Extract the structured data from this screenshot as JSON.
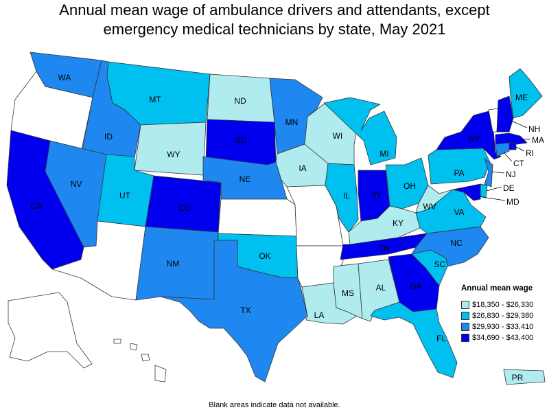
{
  "title_lines": [
    "Annual mean wage of ambulance drivers and attendants, except",
    "emergency medical technicians by state, May 2021"
  ],
  "legend": {
    "title": "Annual mean wage",
    "bins": [
      {
        "label": "$18,350 - $26,330",
        "color": "#b0ecef"
      },
      {
        "label": "$26,830 - $29,380",
        "color": "#00c0f0"
      },
      {
        "label": "$29,930 - $33,410",
        "color": "#1e88f0"
      },
      {
        "label": "$34,690 - $43,400",
        "color": "#0000ee"
      }
    ],
    "no_data_color": "#ffffff"
  },
  "footnote": "Blank areas indicate data not available.",
  "states": [
    {
      "code": "WA",
      "label": "WA",
      "bin": 2
    },
    {
      "code": "OR",
      "label": "",
      "bin": null
    },
    {
      "code": "CA",
      "label": "CA",
      "bin": 3
    },
    {
      "code": "ID",
      "label": "ID",
      "bin": 2
    },
    {
      "code": "NV",
      "label": "NV",
      "bin": 2
    },
    {
      "code": "MT",
      "label": "MT",
      "bin": 1
    },
    {
      "code": "WY",
      "label": "WY",
      "bin": 0
    },
    {
      "code": "UT",
      "label": "UT",
      "bin": 1
    },
    {
      "code": "AZ",
      "label": "",
      "bin": null
    },
    {
      "code": "CO",
      "label": "CO",
      "bin": 3
    },
    {
      "code": "NM",
      "label": "NM",
      "bin": 2
    },
    {
      "code": "ND",
      "label": "ND",
      "bin": 0
    },
    {
      "code": "SD",
      "label": "SD",
      "bin": 3
    },
    {
      "code": "NE",
      "label": "NE",
      "bin": 2
    },
    {
      "code": "KS",
      "label": "",
      "bin": null
    },
    {
      "code": "OK",
      "label": "OK",
      "bin": 1
    },
    {
      "code": "TX",
      "label": "TX",
      "bin": 2
    },
    {
      "code": "MN",
      "label": "MN",
      "bin": 2
    },
    {
      "code": "IA",
      "label": "IA",
      "bin": 0
    },
    {
      "code": "MO",
      "label": "",
      "bin": null
    },
    {
      "code": "AR",
      "label": "",
      "bin": null
    },
    {
      "code": "LA",
      "label": "LA",
      "bin": 0
    },
    {
      "code": "WI",
      "label": "WI",
      "bin": 0
    },
    {
      "code": "IL",
      "label": "IL",
      "bin": 1
    },
    {
      "code": "MI",
      "label": "MI",
      "bin": 1
    },
    {
      "code": "IN",
      "label": "IN",
      "bin": 3
    },
    {
      "code": "OH",
      "label": "OH",
      "bin": 1
    },
    {
      "code": "KY",
      "label": "KY",
      "bin": 0
    },
    {
      "code": "TN",
      "label": "TN",
      "bin": 3
    },
    {
      "code": "MS",
      "label": "MS",
      "bin": 0
    },
    {
      "code": "AL",
      "label": "AL",
      "bin": 0
    },
    {
      "code": "GA",
      "label": "GA",
      "bin": 3
    },
    {
      "code": "FL",
      "label": "FL",
      "bin": 1
    },
    {
      "code": "SC",
      "label": "SC",
      "bin": 1
    },
    {
      "code": "NC",
      "label": "NC",
      "bin": 2
    },
    {
      "code": "VA",
      "label": "VA",
      "bin": 1
    },
    {
      "code": "WV",
      "label": "WV",
      "bin": 0
    },
    {
      "code": "PA",
      "label": "PA",
      "bin": 1
    },
    {
      "code": "NY",
      "label": "NY",
      "bin": 3
    },
    {
      "code": "ME",
      "label": "ME",
      "bin": 1
    },
    {
      "code": "VT",
      "label": "",
      "bin": null
    },
    {
      "code": "NH",
      "label": "NH",
      "bin": 3
    },
    {
      "code": "MA",
      "label": "MA",
      "bin": 3
    },
    {
      "code": "RI",
      "label": "RI",
      "bin": 3
    },
    {
      "code": "CT",
      "label": "CT",
      "bin": 2
    },
    {
      "code": "NJ",
      "label": "NJ",
      "bin": 2
    },
    {
      "code": "DE",
      "label": "DE",
      "bin": 1
    },
    {
      "code": "MD",
      "label": "MD",
      "bin": 3
    },
    {
      "code": "AK",
      "label": "",
      "bin": null
    },
    {
      "code": "HI",
      "label": "",
      "bin": null
    },
    {
      "code": "PR",
      "label": "PR",
      "bin": 0
    }
  ]
}
